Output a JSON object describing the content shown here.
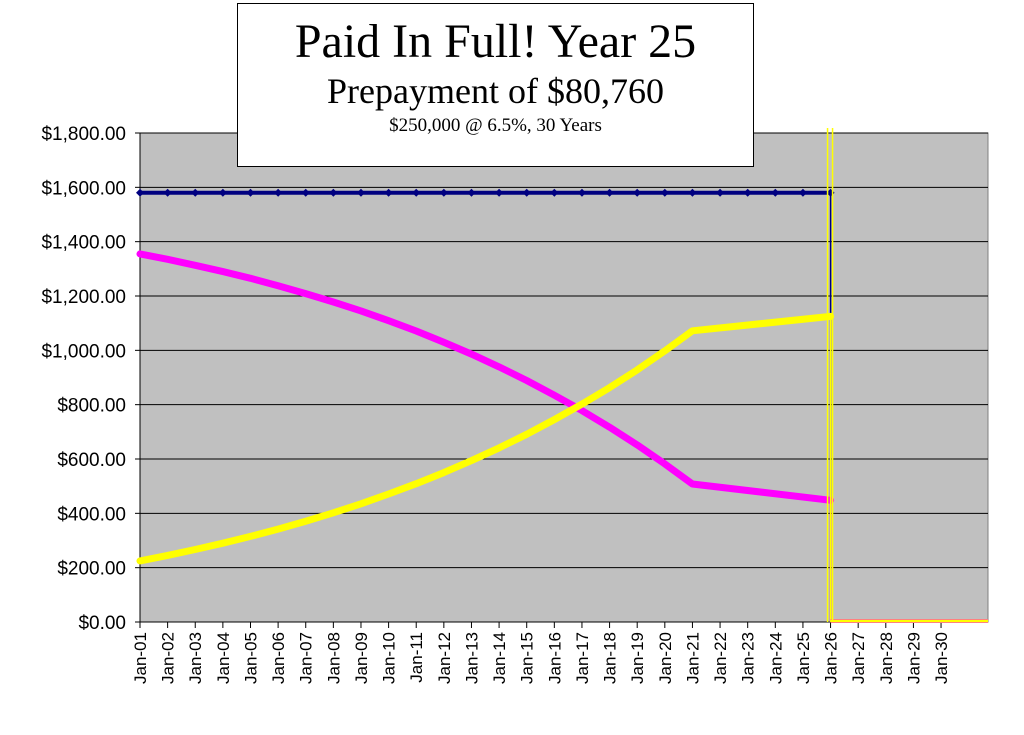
{
  "chart_data": {
    "type": "line",
    "title": "Paid In Full! Year 25",
    "subtitle": "Prepayment of $80,760",
    "note": "$250,000 @ 6.5%, 30 Years",
    "xlabel": "",
    "ylabel": "",
    "categories": [
      "Jan-01",
      "Jan-02",
      "Jan-03",
      "Jan-04",
      "Jan-05",
      "Jan-06",
      "Jan-07",
      "Jan-08",
      "Jan-09",
      "Jan-10",
      "Jan-11",
      "Jan-12",
      "Jan-13",
      "Jan-14",
      "Jan-15",
      "Jan-16",
      "Jan-17",
      "Jan-18",
      "Jan-19",
      "Jan-20",
      "Jan-21",
      "Jan-22",
      "Jan-23",
      "Jan-24",
      "Jan-25",
      "Jan-26",
      "Jan-27",
      "Jan-28",
      "Jan-29",
      "Jan-30"
    ],
    "ylim": [
      0,
      1800
    ],
    "yticks": [
      "$0.00",
      "$200.00",
      "$400.00",
      "$600.00",
      "$800.00",
      "$1,000.00",
      "$1,200.00",
      "$1,400.00",
      "$1,600.00",
      "$1,800.00"
    ],
    "grid": true,
    "payoff_marker": "Jan-26",
    "series": [
      {
        "color": "#000080",
        "values": [
          1580,
          1580,
          1580,
          1580,
          1580,
          1580,
          1580,
          1580,
          1580,
          1580,
          1580,
          1580,
          1580,
          1580,
          1580,
          1580,
          1580,
          1580,
          1580,
          1580,
          1580,
          1580,
          1580,
          1580,
          1580,
          1580,
          0,
          0,
          0,
          0
        ]
      },
      {
        "color": "#ff00ff",
        "values": [
          1355,
          1335,
          1313,
          1290,
          1265,
          1238,
          1209,
          1178,
          1145,
          1109,
          1071,
          1030,
          986,
          939,
          889,
          835,
          778,
          717,
          652,
          582,
          508,
          448,
          0,
          0,
          0,
          0,
          0,
          0,
          0,
          0
        ]
      },
      {
        "color": "#ffff00",
        "values": [
          225,
          245,
          267,
          290,
          315,
          342,
          371,
          402,
          435,
          471,
          509,
          550,
          594,
          641,
          691,
          745,
          802,
          863,
          928,
          998,
          1072,
          1125,
          0,
          0,
          0,
          0,
          0,
          0,
          0,
          0
        ]
      }
    ]
  }
}
